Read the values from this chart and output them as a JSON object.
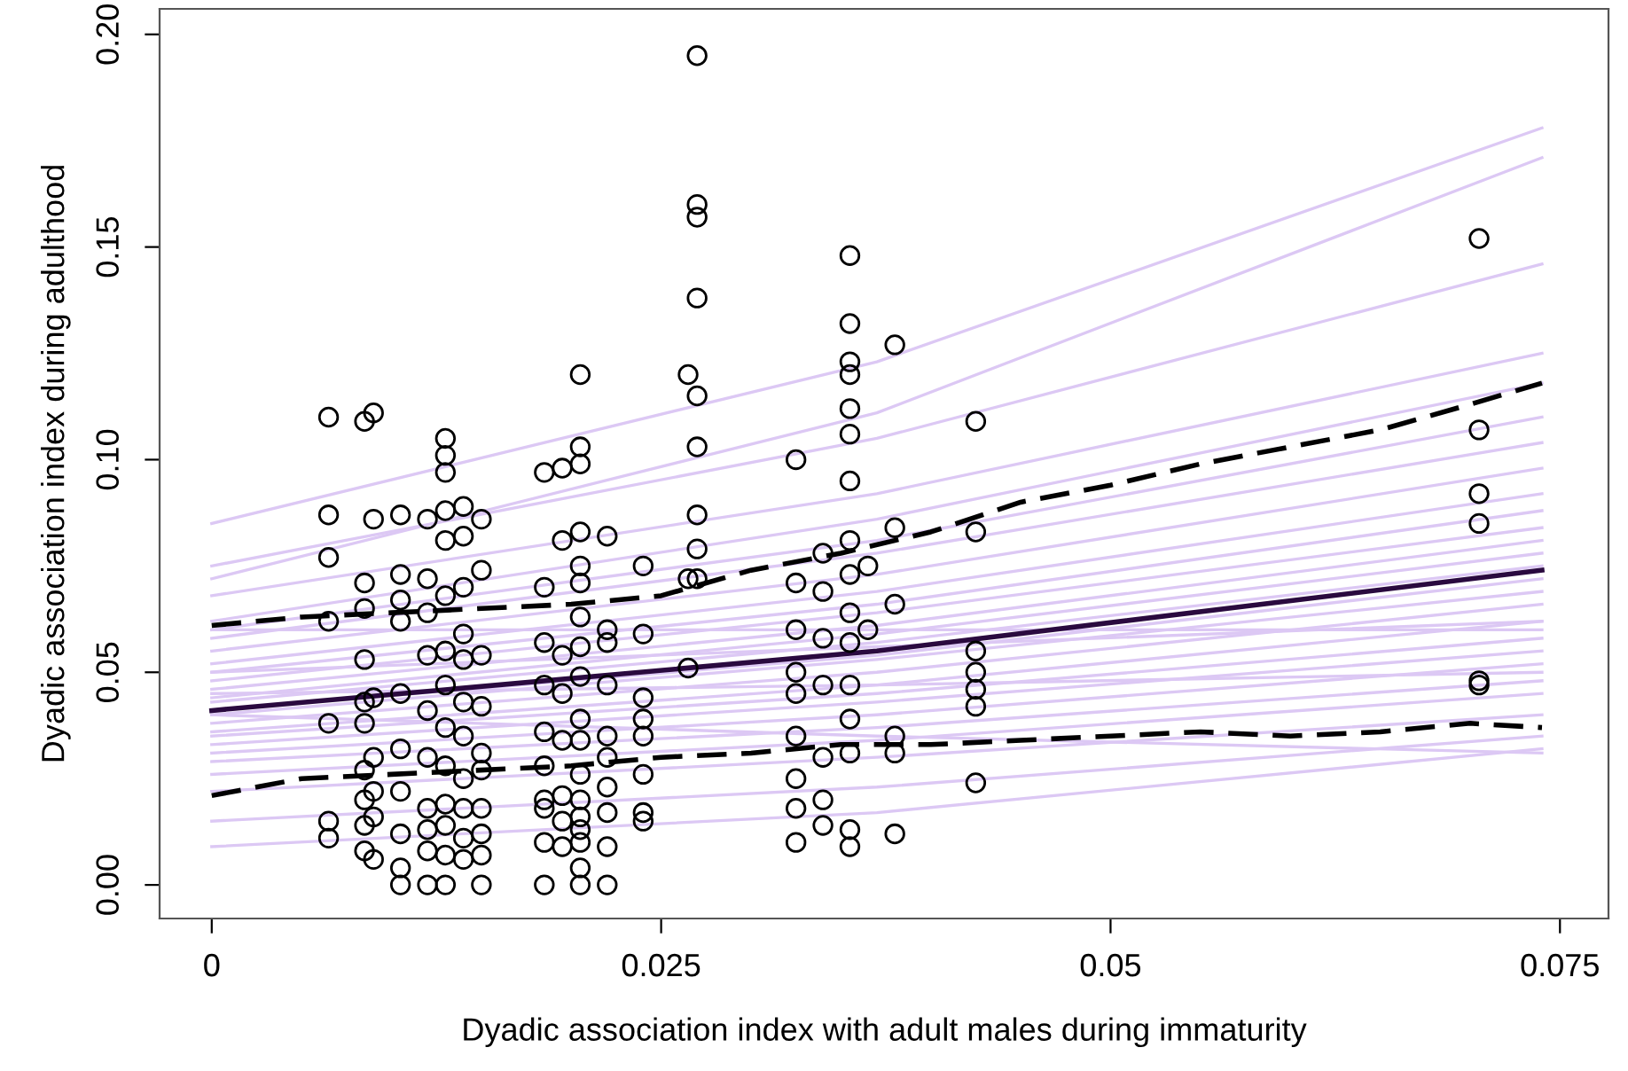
{
  "chart_data": {
    "type": "line",
    "xlabel": "Dyadic association index with adult males during immaturity",
    "ylabel": "Dyadic association index during adulthood",
    "xlim": [
      -0.0029,
      0.0777
    ],
    "ylim": [
      -0.0079,
      0.206
    ],
    "xticks": [
      {
        "value": 0,
        "label": "0"
      },
      {
        "value": 0.025,
        "label": "0.025"
      },
      {
        "value": 0.05,
        "label": "0.05"
      },
      {
        "value": 0.075,
        "label": "0.075"
      }
    ],
    "yticks": [
      {
        "value": 0,
        "label": "0.00"
      },
      {
        "value": 0.05,
        "label": "0.05"
      },
      {
        "value": 0.1,
        "label": "0.10"
      },
      {
        "value": 0.15,
        "label": "0.15"
      },
      {
        "value": 0.2,
        "label": "0.20"
      }
    ],
    "series": [
      {
        "type": "line",
        "color": "#dcc8f4",
        "x": [
          0,
          0.037,
          0.074
        ],
        "values": [
          0.085,
          0.123,
          0.178
        ]
      },
      {
        "type": "line",
        "color": "#dcc8f4",
        "x": [
          0,
          0.037,
          0.074
        ],
        "values": [
          0.072,
          0.111,
          0.171
        ]
      },
      {
        "type": "line",
        "color": "#dcc8f4",
        "x": [
          0,
          0.037,
          0.074
        ],
        "values": [
          0.075,
          0.105,
          0.146
        ]
      },
      {
        "type": "line",
        "color": "#dcc8f4",
        "x": [
          0,
          0.037,
          0.074
        ],
        "values": [
          0.068,
          0.092,
          0.125
        ]
      },
      {
        "type": "line",
        "color": "#dcc8f4",
        "x": [
          0,
          0.037,
          0.074
        ],
        "values": [
          0.062,
          0.086,
          0.118
        ]
      },
      {
        "type": "line",
        "color": "#dcc8f4",
        "x": [
          0,
          0.037,
          0.074
        ],
        "values": [
          0.06,
          0.081,
          0.11
        ]
      },
      {
        "type": "line",
        "color": "#dcc8f4",
        "x": [
          0,
          0.037,
          0.074
        ],
        "values": [
          0.058,
          0.078,
          0.104
        ]
      },
      {
        "type": "line",
        "color": "#dcc8f4",
        "x": [
          0,
          0.037,
          0.074
        ],
        "values": [
          0.055,
          0.073,
          0.098
        ]
      },
      {
        "type": "line",
        "color": "#dcc8f4",
        "x": [
          0,
          0.037,
          0.074
        ],
        "values": [
          0.052,
          0.069,
          0.092
        ]
      },
      {
        "type": "line",
        "color": "#dcc8f4",
        "x": [
          0,
          0.037,
          0.074
        ],
        "values": [
          0.05,
          0.066,
          0.088
        ]
      },
      {
        "type": "line",
        "color": "#dcc8f4",
        "x": [
          0,
          0.037,
          0.074
        ],
        "values": [
          0.048,
          0.064,
          0.084
        ]
      },
      {
        "type": "line",
        "color": "#dcc8f4",
        "x": [
          0,
          0.037,
          0.074
        ],
        "values": [
          0.046,
          0.061,
          0.081
        ]
      },
      {
        "type": "line",
        "color": "#dcc8f4",
        "x": [
          0,
          0.037,
          0.074
        ],
        "values": [
          0.044,
          0.059,
          0.078
        ]
      },
      {
        "type": "line",
        "color": "#dcc8f4",
        "x": [
          0,
          0.037,
          0.074
        ],
        "values": [
          0.043,
          0.057,
          0.075
        ]
      },
      {
        "type": "line",
        "color": "#dcc8f4",
        "x": [
          0,
          0.037,
          0.074
        ],
        "values": [
          0.041,
          0.054,
          0.072
        ]
      },
      {
        "type": "line",
        "color": "#dcc8f4",
        "x": [
          0,
          0.037,
          0.074
        ],
        "values": [
          0.04,
          0.053,
          0.069
        ]
      },
      {
        "type": "line",
        "color": "#dcc8f4",
        "x": [
          0,
          0.037,
          0.074
        ],
        "values": [
          0.038,
          0.05,
          0.066
        ]
      },
      {
        "type": "line",
        "color": "#dcc8f4",
        "x": [
          0,
          0.037,
          0.074
        ],
        "values": [
          0.036,
          0.047,
          0.062
        ]
      },
      {
        "type": "line",
        "color": "#dcc8f4",
        "x": [
          0,
          0.037,
          0.074
        ],
        "values": [
          0.035,
          0.045,
          0.058
        ]
      },
      {
        "type": "line",
        "color": "#dcc8f4",
        "x": [
          0,
          0.037,
          0.074
        ],
        "values": [
          0.033,
          0.043,
          0.055
        ]
      },
      {
        "type": "line",
        "color": "#dcc8f4",
        "x": [
          0,
          0.037,
          0.074
        ],
        "values": [
          0.031,
          0.04,
          0.052
        ]
      },
      {
        "type": "line",
        "color": "#dcc8f4",
        "x": [
          0,
          0.037,
          0.074
        ],
        "values": [
          0.029,
          0.037,
          0.048
        ]
      },
      {
        "type": "line",
        "color": "#dcc8f4",
        "x": [
          0,
          0.037,
          0.074
        ],
        "values": [
          0.026,
          0.034,
          0.045
        ]
      },
      {
        "type": "line",
        "color": "#dcc8f4",
        "x": [
          0,
          0.037,
          0.074
        ],
        "values": [
          0.022,
          0.03,
          0.04
        ]
      },
      {
        "type": "line",
        "color": "#dcc8f4",
        "x": [
          0,
          0.037,
          0.074
        ],
        "values": [
          0.015,
          0.023,
          0.035
        ]
      },
      {
        "type": "line",
        "color": "#dcc8f4",
        "x": [
          0,
          0.037,
          0.074
        ],
        "values": [
          0.009,
          0.017,
          0.032
        ]
      },
      {
        "type": "line",
        "color": "#dcc8f4",
        "x": [
          0,
          0.037,
          0.074
        ],
        "values": [
          0.06,
          0.06,
          0.06
        ]
      },
      {
        "type": "line",
        "color": "#dcc8f4",
        "x": [
          0,
          0.037,
          0.074
        ],
        "values": [
          0.05,
          0.056,
          0.062
        ]
      },
      {
        "type": "line",
        "color": "#dcc8f4",
        "x": [
          0,
          0.037,
          0.074
        ],
        "values": [
          0.045,
          0.047,
          0.05
        ]
      },
      {
        "type": "line",
        "color": "#dcc8f4",
        "x": [
          0,
          0.037,
          0.074
        ],
        "values": [
          0.04,
          0.035,
          0.031
        ]
      },
      {
        "type": "line",
        "color": "#2a0a3f",
        "line_style": "solid",
        "x": [
          0,
          0.037,
          0.074
        ],
        "values": [
          0.041,
          0.055,
          0.074
        ]
      },
      {
        "type": "line",
        "color": "#000000",
        "line_style": "dashed",
        "x": [
          0,
          0.005,
          0.01,
          0.02,
          0.025,
          0.03,
          0.035,
          0.04,
          0.045,
          0.05,
          0.055,
          0.06,
          0.065,
          0.07,
          0.074
        ],
        "values": [
          0.061,
          0.063,
          0.064,
          0.066,
          0.068,
          0.074,
          0.078,
          0.083,
          0.09,
          0.094,
          0.099,
          0.103,
          0.107,
          0.113,
          0.118
        ]
      },
      {
        "type": "line",
        "color": "#000000",
        "line_style": "dashed",
        "x": [
          0,
          0.005,
          0.01,
          0.02,
          0.025,
          0.03,
          0.035,
          0.04,
          0.045,
          0.05,
          0.055,
          0.06,
          0.065,
          0.07,
          0.074
        ],
        "values": [
          0.021,
          0.025,
          0.026,
          0.028,
          0.03,
          0.031,
          0.033,
          0.033,
          0.034,
          0.035,
          0.036,
          0.035,
          0.036,
          0.038,
          0.037
        ]
      },
      {
        "type": "scatter",
        "color": "#000000",
        "marker": "circle",
        "x": [
          0.0065,
          0.0065,
          0.0065,
          0.0065,
          0.0065,
          0.0065,
          0.0065,
          0.0085,
          0.0085,
          0.0085,
          0.0085,
          0.0085,
          0.0085,
          0.0085,
          0.0085,
          0.0085,
          0.0085,
          0.009,
          0.009,
          0.009,
          0.009,
          0.009,
          0.009,
          0.009,
          0.0105,
          0.0105,
          0.0105,
          0.0105,
          0.0105,
          0.0105,
          0.0105,
          0.0105,
          0.0105,
          0.0105,
          0.012,
          0.012,
          0.012,
          0.012,
          0.012,
          0.012,
          0.012,
          0.012,
          0.012,
          0.012,
          0.013,
          0.013,
          0.013,
          0.013,
          0.013,
          0.013,
          0.013,
          0.013,
          0.013,
          0.013,
          0.013,
          0.013,
          0.013,
          0.013,
          0.014,
          0.014,
          0.014,
          0.014,
          0.014,
          0.014,
          0.014,
          0.014,
          0.014,
          0.014,
          0.014,
          0.015,
          0.015,
          0.015,
          0.015,
          0.015,
          0.015,
          0.015,
          0.015,
          0.015,
          0.015,
          0.0185,
          0.0185,
          0.0185,
          0.0185,
          0.0185,
          0.0185,
          0.0185,
          0.0185,
          0.0185,
          0.0185,
          0.0195,
          0.0195,
          0.0195,
          0.0195,
          0.0195,
          0.0195,
          0.0195,
          0.0195,
          0.0205,
          0.0205,
          0.0205,
          0.0205,
          0.0205,
          0.0205,
          0.0205,
          0.0205,
          0.0205,
          0.0205,
          0.0205,
          0.0205,
          0.0205,
          0.0205,
          0.0205,
          0.0205,
          0.0205,
          0.0205,
          0.022,
          0.022,
          0.022,
          0.022,
          0.022,
          0.022,
          0.022,
          0.022,
          0.022,
          0.022,
          0.024,
          0.024,
          0.024,
          0.024,
          0.024,
          0.024,
          0.024,
          0.024,
          0.0265,
          0.0265,
          0.0265,
          0.027,
          0.027,
          0.027,
          0.027,
          0.027,
          0.027,
          0.027,
          0.027,
          0.027,
          0.0325,
          0.0325,
          0.0325,
          0.0325,
          0.0325,
          0.0325,
          0.0325,
          0.0325,
          0.0325,
          0.034,
          0.034,
          0.034,
          0.034,
          0.034,
          0.034,
          0.034,
          0.0355,
          0.0355,
          0.0355,
          0.0355,
          0.0355,
          0.0355,
          0.0355,
          0.0355,
          0.0355,
          0.0355,
          0.0355,
          0.0355,
          0.0355,
          0.0355,
          0.0355,
          0.0355,
          0.0365,
          0.0365,
          0.038,
          0.038,
          0.038,
          0.038,
          0.038,
          0.038,
          0.0425,
          0.0425,
          0.0425,
          0.0425,
          0.0425,
          0.0425,
          0.0425,
          0.0705,
          0.0705,
          0.0705,
          0.0705,
          0.0705,
          0.0705
        ],
        "values": [
          0.011,
          0.015,
          0.038,
          0.062,
          0.077,
          0.087,
          0.11,
          0.109,
          0.071,
          0.065,
          0.053,
          0.043,
          0.038,
          0.027,
          0.02,
          0.014,
          0.008,
          0.111,
          0.086,
          0.044,
          0.03,
          0.022,
          0.016,
          0.006,
          0.087,
          0.073,
          0.067,
          0.062,
          0.045,
          0.032,
          0.022,
          0.012,
          0.004,
          0.0,
          0.086,
          0.072,
          0.064,
          0.054,
          0.041,
          0.03,
          0.018,
          0.013,
          0.008,
          0.0,
          0.105,
          0.101,
          0.097,
          0.088,
          0.081,
          0.068,
          0.055,
          0.047,
          0.037,
          0.028,
          0.019,
          0.014,
          0.007,
          0.0,
          0.089,
          0.082,
          0.07,
          0.059,
          0.053,
          0.043,
          0.035,
          0.025,
          0.018,
          0.011,
          0.006,
          0.086,
          0.074,
          0.054,
          0.042,
          0.031,
          0.027,
          0.018,
          0.012,
          0.007,
          0.0,
          0.097,
          0.07,
          0.057,
          0.047,
          0.036,
          0.028,
          0.02,
          0.018,
          0.01,
          0.0,
          0.098,
          0.081,
          0.054,
          0.045,
          0.034,
          0.021,
          0.015,
          0.009,
          0.12,
          0.103,
          0.099,
          0.083,
          0.075,
          0.071,
          0.063,
          0.056,
          0.049,
          0.039,
          0.034,
          0.026,
          0.02,
          0.016,
          0.013,
          0.01,
          0.004,
          0.0,
          0.082,
          0.06,
          0.057,
          0.047,
          0.035,
          0.03,
          0.023,
          0.017,
          0.009,
          0.0,
          0.075,
          0.059,
          0.044,
          0.039,
          0.035,
          0.026,
          0.017,
          0.015,
          0.12,
          0.072,
          0.051,
          0.195,
          0.16,
          0.157,
          0.138,
          0.115,
          0.103,
          0.087,
          0.079,
          0.072,
          0.1,
          0.071,
          0.06,
          0.05,
          0.045,
          0.035,
          0.025,
          0.018,
          0.01,
          0.078,
          0.069,
          0.058,
          0.047,
          0.03,
          0.02,
          0.014,
          0.148,
          0.132,
          0.123,
          0.12,
          0.112,
          0.106,
          0.095,
          0.081,
          0.073,
          0.064,
          0.057,
          0.047,
          0.039,
          0.031,
          0.013,
          0.009,
          0.075,
          0.06,
          0.127,
          0.084,
          0.066,
          0.035,
          0.031,
          0.012,
          0.109,
          0.083,
          0.055,
          0.05,
          0.046,
          0.042,
          0.024,
          0.152,
          0.107,
          0.092,
          0.085,
          0.048,
          0.047
        ]
      }
    ]
  }
}
